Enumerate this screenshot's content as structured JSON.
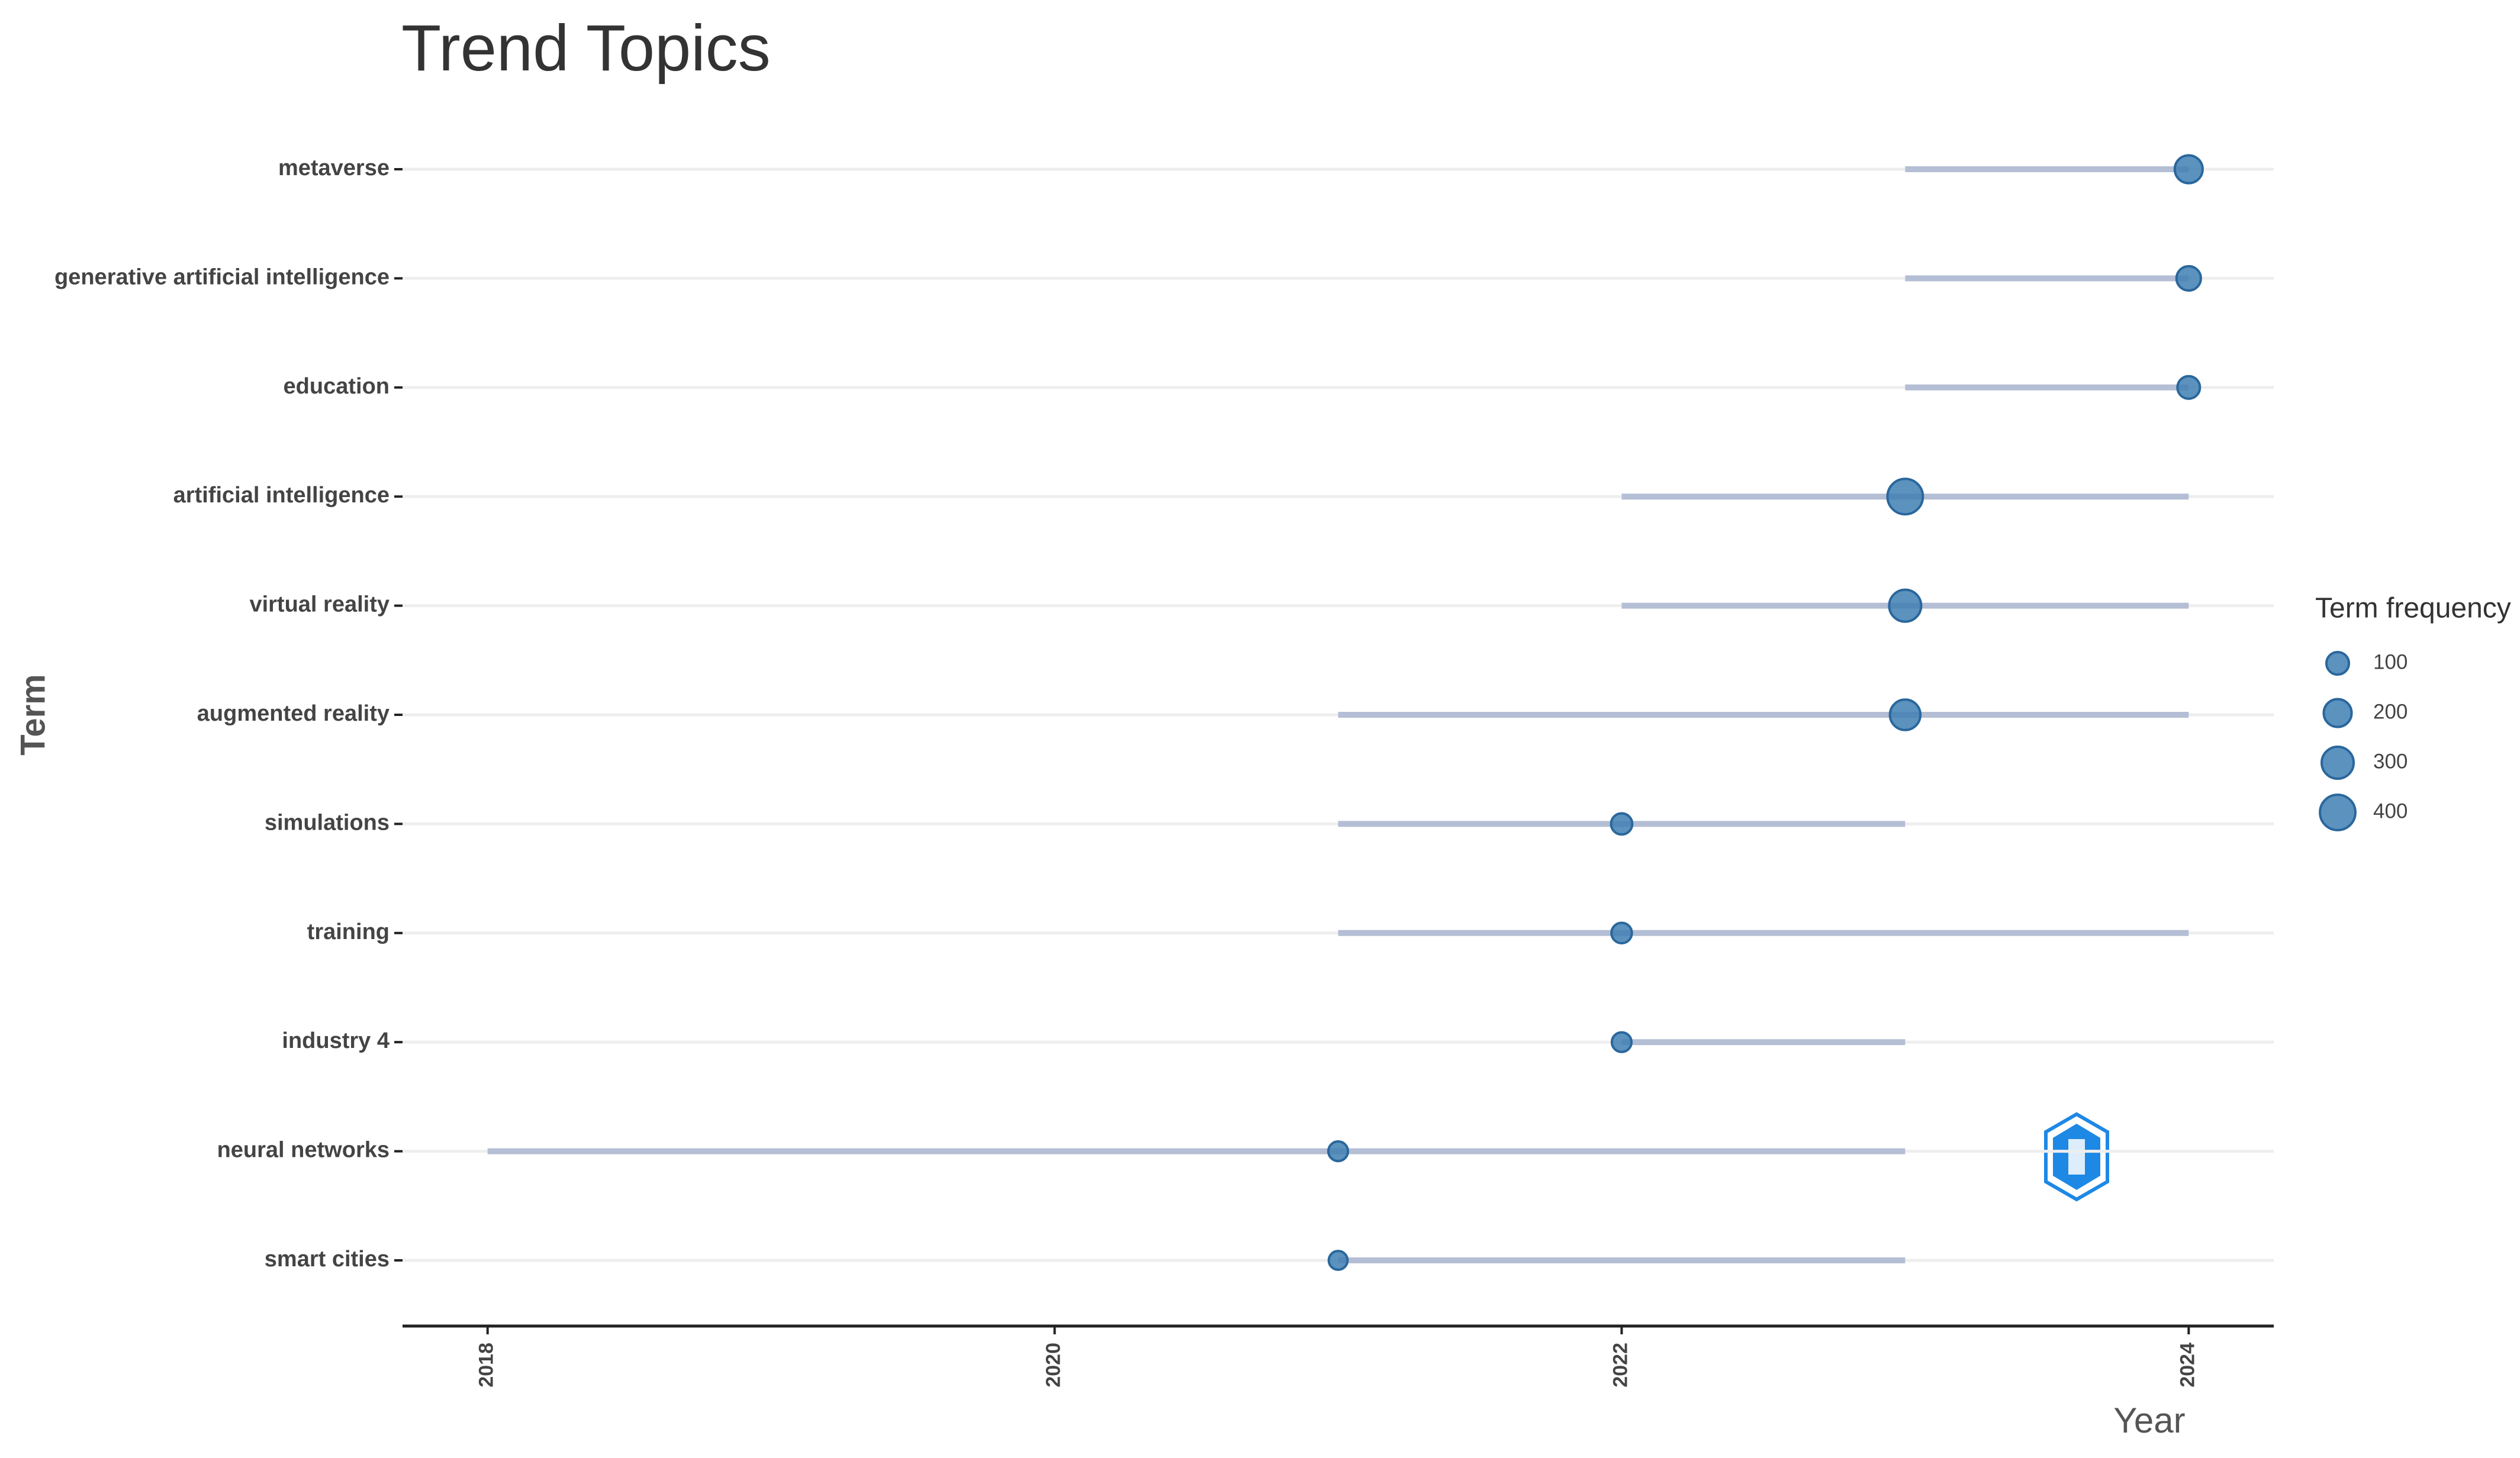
{
  "chart_data": {
    "type": "trend",
    "title": "Trend Topics",
    "x_label": "Year",
    "y_label": "Term",
    "legend_title": "Term frequency",
    "categories": [
      "metaverse",
      "generative artificial intelligence",
      "education",
      "artificial intelligence",
      "virtual reality",
      "augmented reality",
      "simulations",
      "training",
      "industry 4",
      "neural networks",
      "smart cities"
    ],
    "values": [
      2024,
      2024,
      2024,
      2023,
      2023,
      2023,
      2022,
      2022,
      2022,
      2021,
      2021
    ],
    "start": [
      2023,
      2023,
      2023,
      2022,
      2022,
      2021,
      2021,
      2021,
      2022,
      2018,
      2021
    ],
    "end": [
      2024,
      2024,
      2024,
      2024,
      2024,
      2024,
      2023,
      2024,
      2023,
      2023,
      2023
    ],
    "frequency": [
      200,
      130,
      100,
      400,
      300,
      260,
      80,
      70,
      60,
      60,
      50
    ],
    "size_legend": [
      100,
      200,
      300,
      400
    ],
    "color": "#3f7fb3",
    "line_color": "#b4bed4",
    "xlim": [
      2017.7,
      2024.3
    ],
    "xticks": [
      2018,
      2020,
      2022,
      2024
    ],
    "grid": true
  }
}
